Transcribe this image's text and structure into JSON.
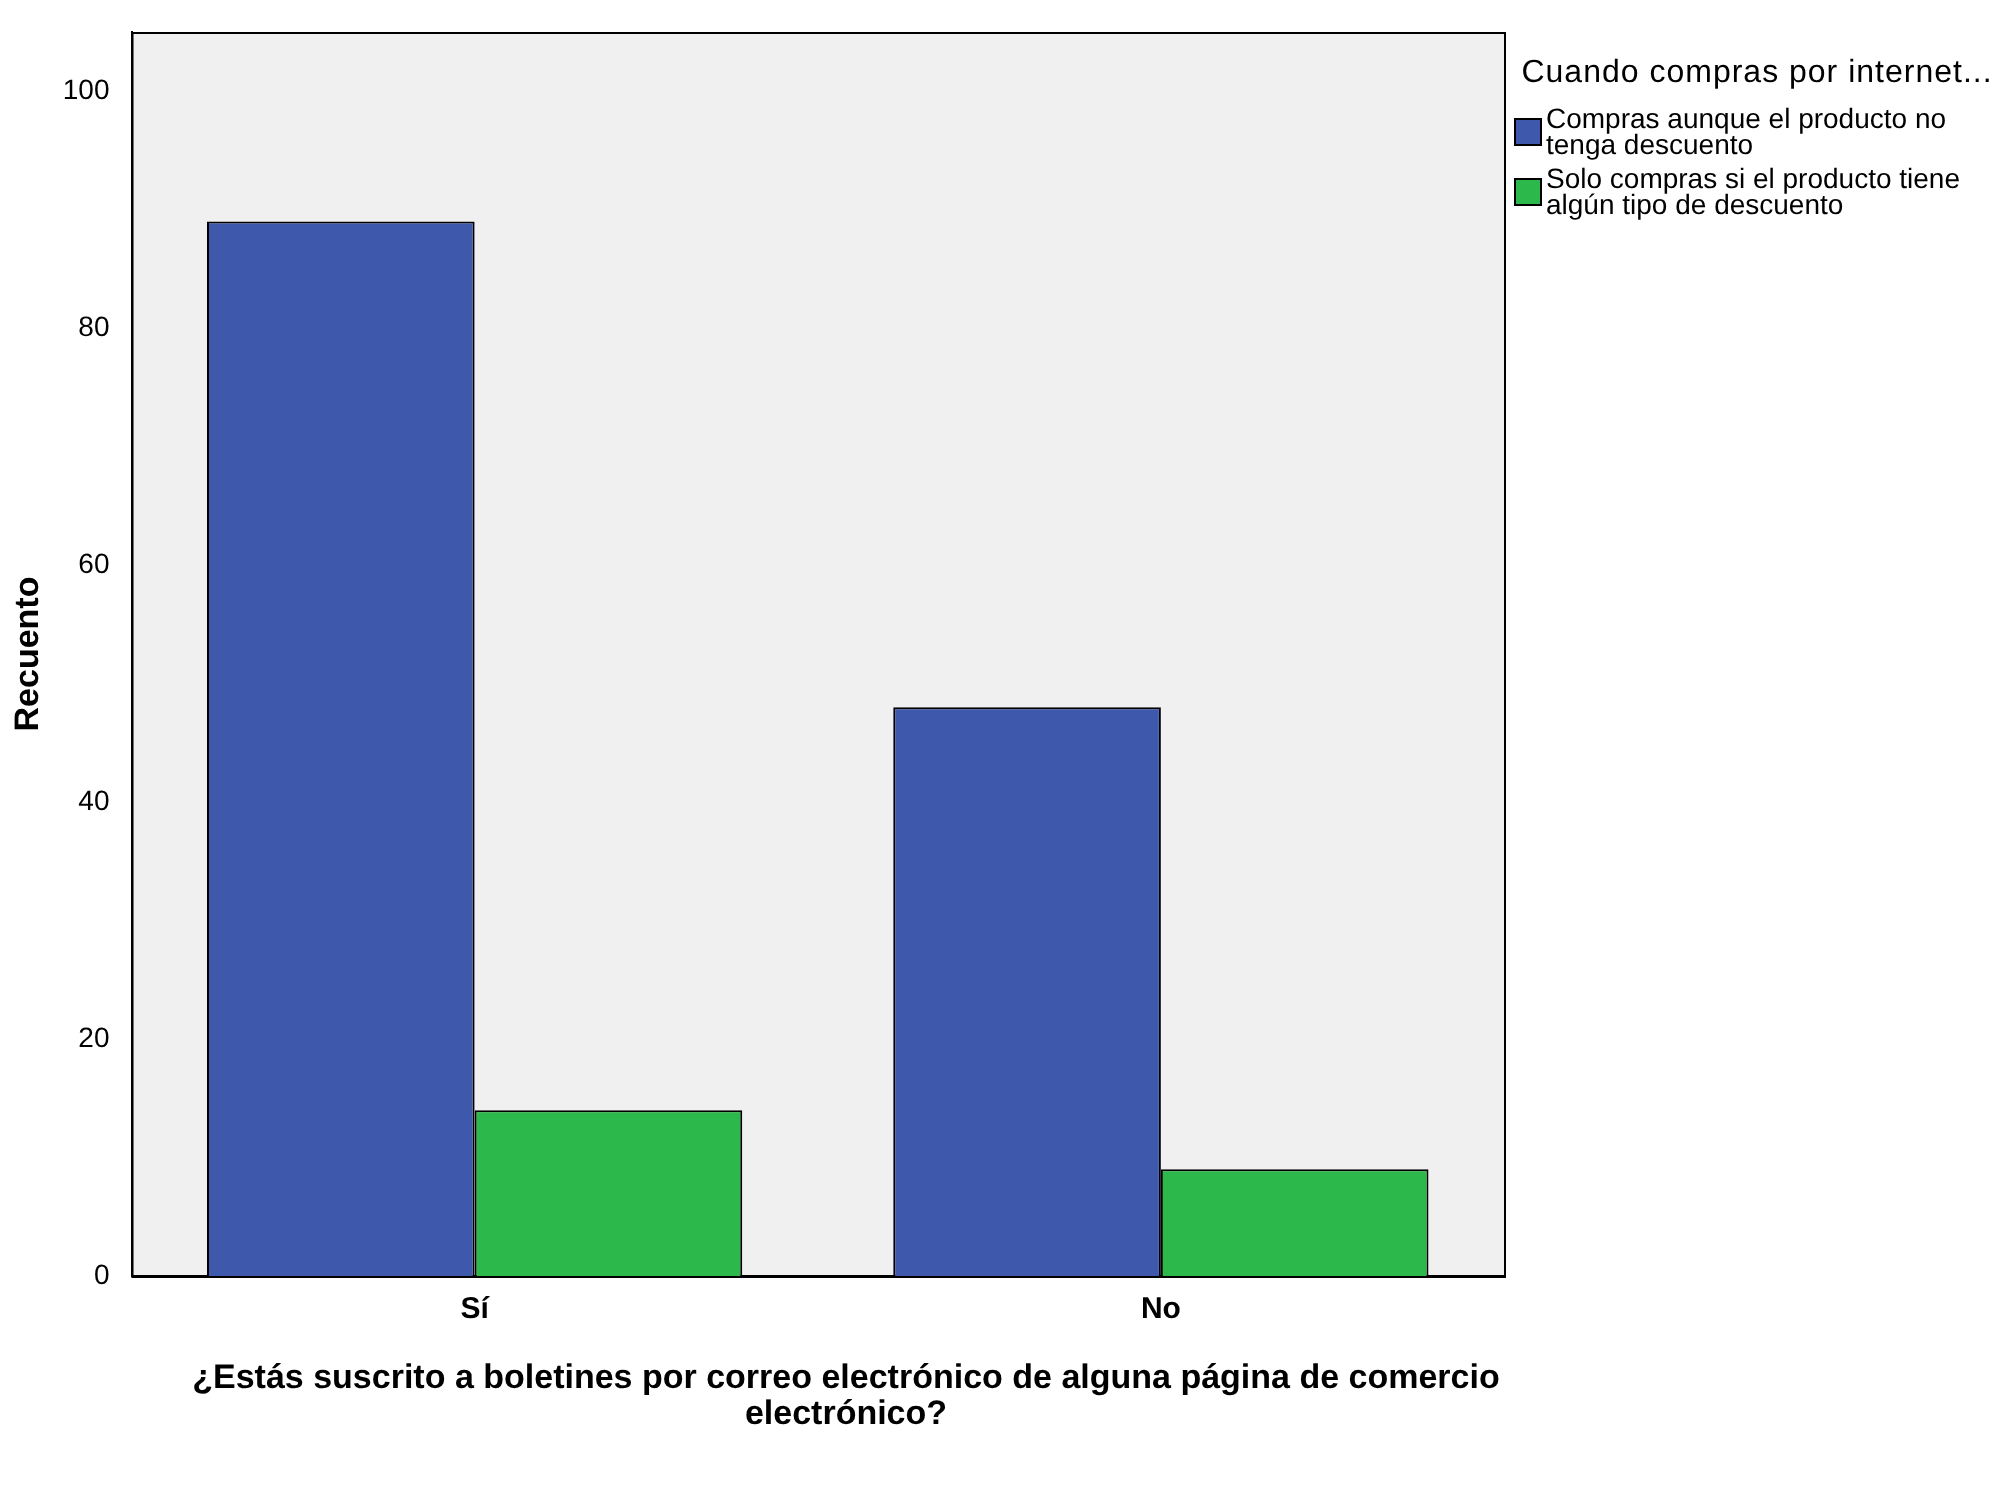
{
  "chart_data": {
    "type": "bar",
    "xlabel": "¿Estás suscrito a boletines por correo electrónico de alguna página de comercio electrónico?",
    "ylabel": "Recuento",
    "legend_title": "Cuando compras por internet...",
    "categories": [
      "Sí",
      "No"
    ],
    "series": [
      {
        "name": "Compras aunque el producto no tenga descuento",
        "color": "#3e58ac",
        "values": [
          89,
          48
        ]
      },
      {
        "name": "Solo compras si el producto tiene algún tipo de descuento",
        "color": "#2db84b",
        "values": [
          14,
          9
        ]
      }
    ],
    "ylim": [
      0,
      105
    ],
    "yticks": [
      0,
      20,
      40,
      60,
      80,
      100
    ],
    "grid": false,
    "legend": "right"
  }
}
